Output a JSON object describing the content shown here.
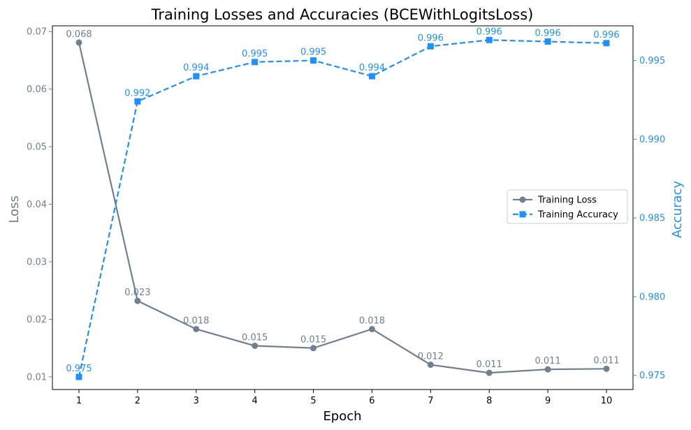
{
  "chart_data": {
    "type": "line",
    "title": "Training Losses and Accuracies (BCEWithLogitsLoss)",
    "xlabel": "Epoch",
    "ylabel_left": "Loss",
    "ylabel_right": "Accuracy",
    "x": [
      1,
      2,
      3,
      4,
      5,
      6,
      7,
      8,
      9,
      10
    ],
    "x_ticks": [
      "1",
      "2",
      "3",
      "4",
      "5",
      "6",
      "7",
      "8",
      "9",
      "10"
    ],
    "y_left_ticks": [
      "0.01",
      "0.02",
      "0.03",
      "0.04",
      "0.05",
      "0.06",
      "0.07"
    ],
    "y_right_ticks": [
      "0.975",
      "0.980",
      "0.985",
      "0.990",
      "0.995"
    ],
    "ylim_left": [
      0.0078,
      0.071
    ],
    "ylim_right": [
      0.9741,
      0.9972
    ],
    "legend_position": "center-right",
    "grid": false,
    "series": [
      {
        "name": "Training Loss",
        "axis": "left",
        "color": "#708090",
        "marker": "circle",
        "line_style": "solid",
        "values": [
          0.0681,
          0.0232,
          0.0183,
          0.0154,
          0.015,
          0.0183,
          0.0121,
          0.0107,
          0.0113,
          0.0114
        ],
        "labels": [
          "0.068",
          "0.023",
          "0.018",
          "0.015",
          "0.015",
          "0.018",
          "0.012",
          "0.011",
          "0.011",
          "0.011"
        ]
      },
      {
        "name": "Training Accuracy",
        "axis": "right",
        "color": "#1e90ff",
        "marker": "square",
        "line_style": "dashed",
        "values": [
          0.9749,
          0.9924,
          0.994,
          0.9949,
          0.995,
          0.994,
          0.9959,
          0.9963,
          0.9962,
          0.9961
        ],
        "labels": [
          "0.975",
          "0.992",
          "0.994",
          "0.995",
          "0.995",
          "0.994",
          "0.996",
          "0.996",
          "0.996",
          "0.996"
        ]
      }
    ]
  }
}
